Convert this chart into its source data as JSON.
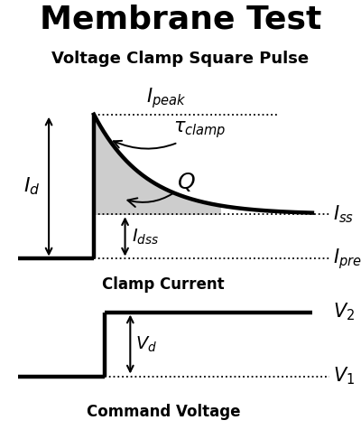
{
  "title": "Membrane Test",
  "subtitle": "Voltage Clamp Square Pulse",
  "bg_color": "#ffffff",
  "figsize": [
    4.0,
    4.86
  ],
  "dpi": 100,
  "top_panel": {
    "xlim": [
      0,
      10
    ],
    "ylim": [
      -0.8,
      6.0
    ],
    "x_start": 0.3,
    "x_step": 2.5,
    "x_end": 8.8,
    "y_prev": 0.0,
    "y_ss": 1.6,
    "y_peak": 5.2,
    "label_Ipeak": "$I_{peak}$",
    "label_Iss": "$I_{ss}$",
    "label_Iprev": "$I_{prev}$",
    "label_Id": "$I_{d}$",
    "label_Idss": "$I_{dss}$",
    "label_tau": "$\\tau_{clamp}$",
    "label_Q": "$Q$",
    "tau_decay": 1.5
  },
  "bottom_panel": {
    "xlim": [
      0,
      10
    ],
    "ylim": [
      -0.5,
      3.2
    ],
    "y_v1": 0.5,
    "y_v2": 2.5,
    "x_step": 2.8,
    "x_end": 8.8,
    "x_start": 0.3,
    "label_V1": "$V_{1}$",
    "label_V2": "$V_{2}$",
    "label_Vd": "$V_{d}$"
  }
}
